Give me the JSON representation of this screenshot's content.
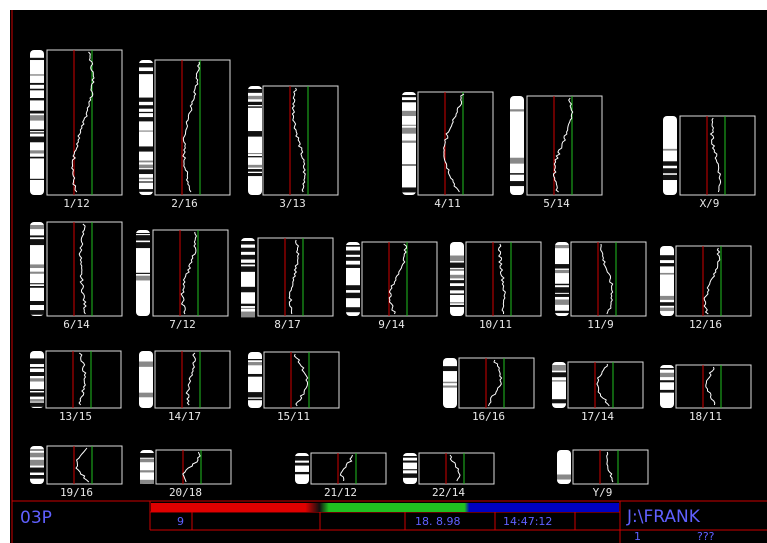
{
  "chromosomes": [
    "1/12",
    "2/16",
    "3/13",
    "4/11",
    "5/14",
    "X/9",
    "6/14",
    "7/12",
    "8/17",
    "9/14",
    "10/11",
    "11/9",
    "12/16",
    "13/15",
    "14/17",
    "15/11",
    "16/16",
    "17/14",
    "18/11",
    "19/16",
    "20/18",
    "21/12",
    "22/14",
    "Y/9"
  ],
  "footer": {
    "case": "03P",
    "field": "9",
    "date": "18. 8.98",
    "time": "14:47:12",
    "path": "J:\\FRANK",
    "page": "1",
    "status": "???"
  }
}
